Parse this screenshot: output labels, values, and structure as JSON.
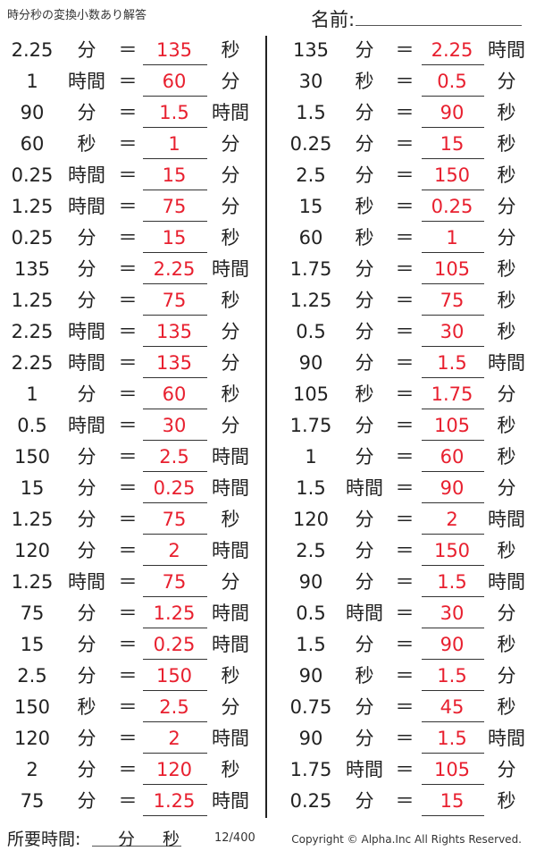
{
  "header": {
    "title": "時分秒の変換小数あり解答",
    "name_label": "名前:"
  },
  "equals": "＝",
  "left": [
    [
      "2.25",
      "分",
      "135",
      "秒"
    ],
    [
      "1",
      "時間",
      "60",
      "分"
    ],
    [
      "90",
      "分",
      "1.5",
      "時間"
    ],
    [
      "60",
      "秒",
      "1",
      "分"
    ],
    [
      "0.25",
      "時間",
      "15",
      "分"
    ],
    [
      "1.25",
      "時間",
      "75",
      "分"
    ],
    [
      "0.25",
      "分",
      "15",
      "秒"
    ],
    [
      "135",
      "分",
      "2.25",
      "時間"
    ],
    [
      "1.25",
      "分",
      "75",
      "秒"
    ],
    [
      "2.25",
      "時間",
      "135",
      "分"
    ],
    [
      "2.25",
      "時間",
      "135",
      "分"
    ],
    [
      "1",
      "分",
      "60",
      "秒"
    ],
    [
      "0.5",
      "時間",
      "30",
      "分"
    ],
    [
      "150",
      "分",
      "2.5",
      "時間"
    ],
    [
      "15",
      "分",
      "0.25",
      "時間"
    ],
    [
      "1.25",
      "分",
      "75",
      "秒"
    ],
    [
      "120",
      "分",
      "2",
      "時間"
    ],
    [
      "1.25",
      "時間",
      "75",
      "分"
    ],
    [
      "75",
      "分",
      "1.25",
      "時間"
    ],
    [
      "15",
      "分",
      "0.25",
      "時間"
    ],
    [
      "2.5",
      "分",
      "150",
      "秒"
    ],
    [
      "150",
      "秒",
      "2.5",
      "分"
    ],
    [
      "120",
      "分",
      "2",
      "時間"
    ],
    [
      "2",
      "分",
      "120",
      "秒"
    ],
    [
      "75",
      "分",
      "1.25",
      "時間"
    ]
  ],
  "right": [
    [
      "135",
      "分",
      "2.25",
      "時間"
    ],
    [
      "30",
      "秒",
      "0.5",
      "分"
    ],
    [
      "1.5",
      "分",
      "90",
      "秒"
    ],
    [
      "0.25",
      "分",
      "15",
      "秒"
    ],
    [
      "2.5",
      "分",
      "150",
      "秒"
    ],
    [
      "15",
      "秒",
      "0.25",
      "分"
    ],
    [
      "60",
      "秒",
      "1",
      "分"
    ],
    [
      "1.75",
      "分",
      "105",
      "秒"
    ],
    [
      "1.25",
      "分",
      "75",
      "秒"
    ],
    [
      "0.5",
      "分",
      "30",
      "秒"
    ],
    [
      "90",
      "分",
      "1.5",
      "時間"
    ],
    [
      "105",
      "秒",
      "1.75",
      "分"
    ],
    [
      "1.75",
      "分",
      "105",
      "秒"
    ],
    [
      "1",
      "分",
      "60",
      "秒"
    ],
    [
      "1.5",
      "時間",
      "90",
      "分"
    ],
    [
      "120",
      "分",
      "2",
      "時間"
    ],
    [
      "2.5",
      "分",
      "150",
      "秒"
    ],
    [
      "90",
      "分",
      "1.5",
      "時間"
    ],
    [
      "0.5",
      "時間",
      "30",
      "分"
    ],
    [
      "1.5",
      "分",
      "90",
      "秒"
    ],
    [
      "90",
      "秒",
      "1.5",
      "分"
    ],
    [
      "0.75",
      "分",
      "45",
      "秒"
    ],
    [
      "90",
      "分",
      "1.5",
      "時間"
    ],
    [
      "1.75",
      "時間",
      "105",
      "分"
    ],
    [
      "0.25",
      "分",
      "15",
      "秒"
    ]
  ],
  "footer": {
    "time_label": "所要時間:",
    "minutes": "分",
    "seconds": "秒",
    "page": "12/400",
    "copyright": "Copyright © Alpha.Inc All Rights Reserved."
  },
  "colors": {
    "answer": "#e8202f"
  }
}
